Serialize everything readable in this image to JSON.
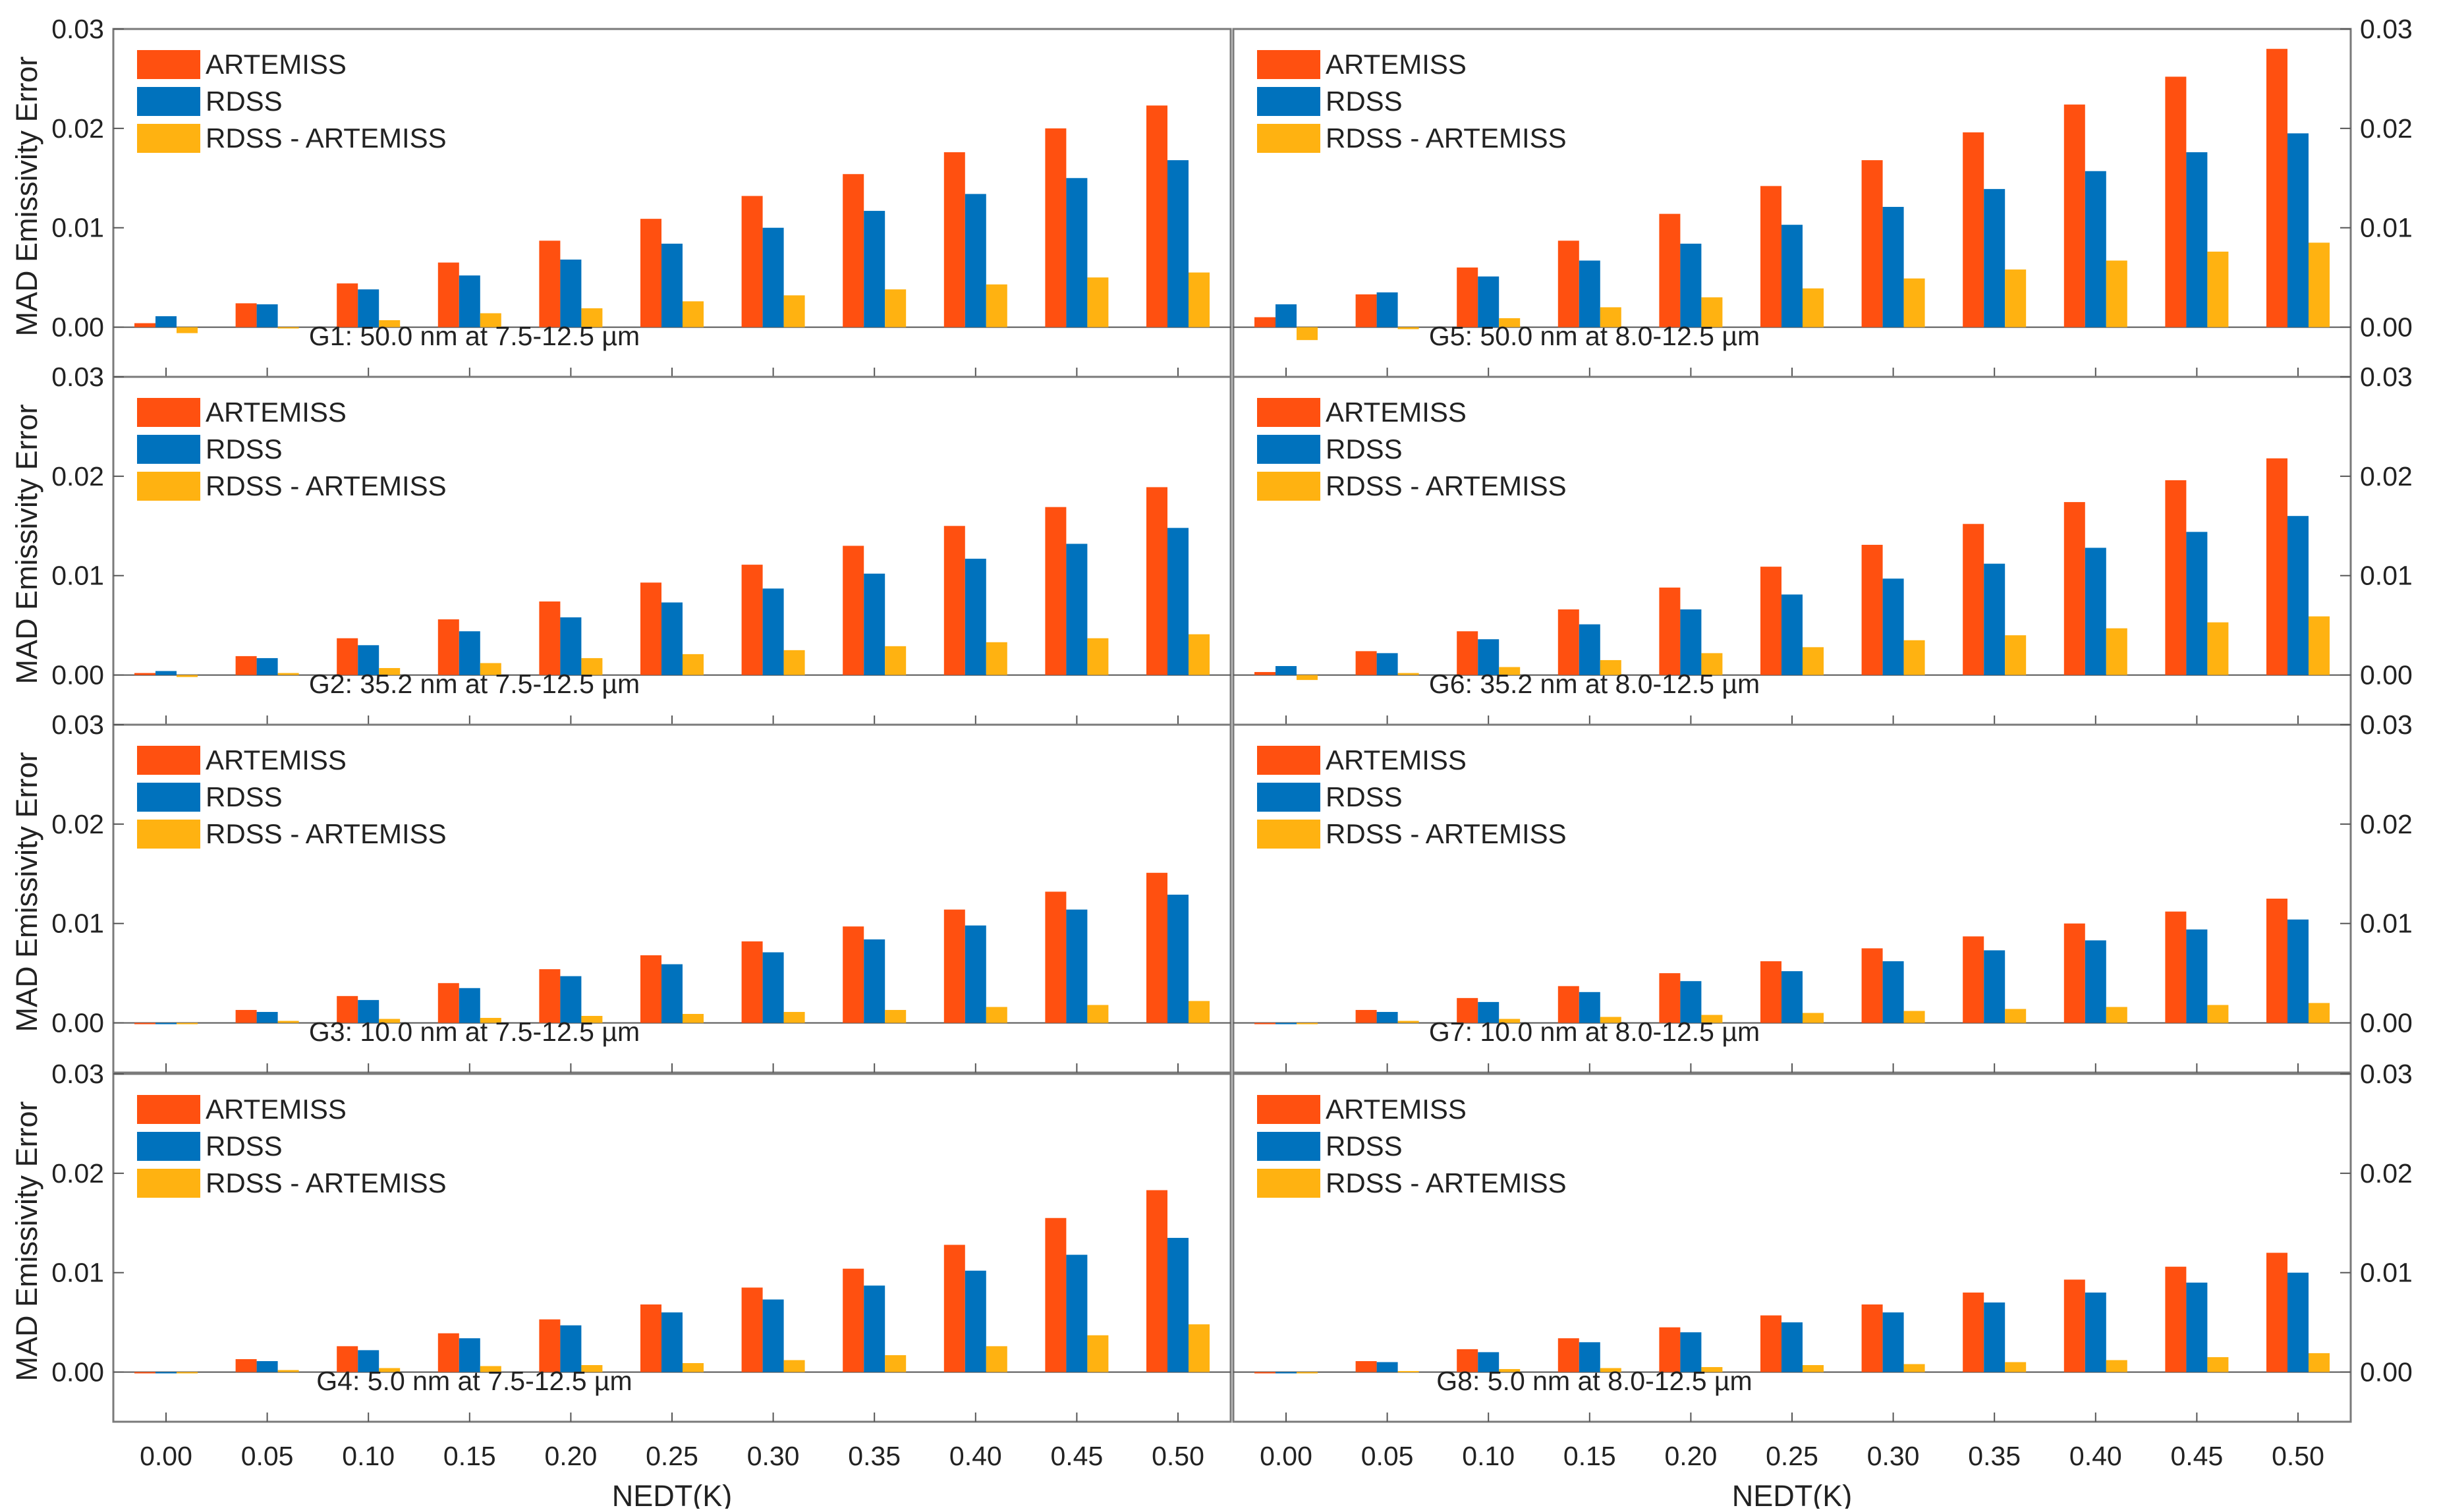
{
  "chart_data": {
    "type": "bar",
    "layout": "4x2 grid of panels sharing y-axis range",
    "ylabel": "MAD Emissivity Error",
    "xlabel": "NEDT(K)",
    "categories": [
      "0.00",
      "0.05",
      "0.10",
      "0.15",
      "0.20",
      "0.25",
      "0.30",
      "0.35",
      "0.40",
      "0.45",
      "0.50"
    ],
    "ylim": [
      -0.005,
      0.03
    ],
    "yticks": [
      "0.00",
      "0.01",
      "0.02",
      "0.03"
    ],
    "legend": [
      "ARTEMISS",
      "RDSS",
      "RDSS - ARTEMISS"
    ],
    "legend_position": "top-left",
    "colors": {
      "ARTEMISS": "#FF5010",
      "RDSS": "#0072BD",
      "RDSS - ARTEMISS": "#FFB211"
    },
    "panels": [
      {
        "title": "G1: 50.0 nm at 7.5-12.5 µm",
        "series": [
          {
            "name": "ARTEMISS",
            "values": [
              0.0004,
              0.0024,
              0.0044,
              0.0065,
              0.0087,
              0.0109,
              0.0132,
              0.0154,
              0.0176,
              0.02,
              0.0223
            ]
          },
          {
            "name": "RDSS",
            "values": [
              0.0011,
              0.0023,
              0.0038,
              0.0052,
              0.0068,
              0.0084,
              0.01,
              0.0117,
              0.0134,
              0.015,
              0.0168
            ]
          },
          {
            "name": "RDSS - ARTEMISS",
            "values": [
              -0.0006,
              0.0,
              0.0007,
              0.0014,
              0.0019,
              0.0026,
              0.0032,
              0.0038,
              0.0043,
              0.005,
              0.0055
            ]
          }
        ]
      },
      {
        "title": "G5: 50.0 nm at 8.0-12.5 µm",
        "series": [
          {
            "name": "ARTEMISS",
            "values": [
              0.001,
              0.0033,
              0.006,
              0.0087,
              0.0114,
              0.0142,
              0.0168,
              0.0196,
              0.0224,
              0.0252,
              0.028
            ]
          },
          {
            "name": "RDSS",
            "values": [
              0.0023,
              0.0035,
              0.0051,
              0.0067,
              0.0084,
              0.0103,
              0.0121,
              0.0139,
              0.0157,
              0.0176,
              0.0195
            ]
          },
          {
            "name": "RDSS - ARTEMISS",
            "values": [
              -0.0013,
              -0.0002,
              0.0009,
              0.002,
              0.003,
              0.0039,
              0.0049,
              0.0058,
              0.0067,
              0.0076,
              0.0085
            ]
          }
        ]
      },
      {
        "title": "G2: 35.2 nm at 7.5-12.5 µm",
        "series": [
          {
            "name": "ARTEMISS",
            "values": [
              0.0002,
              0.0019,
              0.0037,
              0.0056,
              0.0074,
              0.0093,
              0.0111,
              0.013,
              0.015,
              0.0169,
              0.0189
            ]
          },
          {
            "name": "RDSS",
            "values": [
              0.0004,
              0.0017,
              0.003,
              0.0044,
              0.0058,
              0.0073,
              0.0087,
              0.0102,
              0.0117,
              0.0132,
              0.0148
            ]
          },
          {
            "name": "RDSS - ARTEMISS",
            "values": [
              -0.0002,
              0.0002,
              0.0007,
              0.0012,
              0.0017,
              0.0021,
              0.0025,
              0.0029,
              0.0033,
              0.0037,
              0.0041
            ]
          }
        ]
      },
      {
        "title": "G6: 35.2 nm at 8.0-12.5 µm",
        "series": [
          {
            "name": "ARTEMISS",
            "values": [
              0.0003,
              0.0024,
              0.0044,
              0.0066,
              0.0088,
              0.0109,
              0.0131,
              0.0152,
              0.0174,
              0.0196,
              0.0218
            ]
          },
          {
            "name": "RDSS",
            "values": [
              0.0009,
              0.0022,
              0.0036,
              0.0051,
              0.0066,
              0.0081,
              0.0097,
              0.0112,
              0.0128,
              0.0144,
              0.016
            ]
          },
          {
            "name": "RDSS - ARTEMISS",
            "values": [
              -0.0005,
              0.0002,
              0.0008,
              0.0015,
              0.0022,
              0.0028,
              0.0035,
              0.004,
              0.0047,
              0.0053,
              0.0059
            ]
          }
        ]
      },
      {
        "title": "G3: 10.0 nm at 7.5-12.5 µm",
        "series": [
          {
            "name": "ARTEMISS",
            "values": [
              0.0,
              0.0013,
              0.0027,
              0.004,
              0.0054,
              0.0068,
              0.0082,
              0.0097,
              0.0114,
              0.0132,
              0.0151
            ]
          },
          {
            "name": "RDSS",
            "values": [
              0.0,
              0.0011,
              0.0023,
              0.0035,
              0.0047,
              0.0059,
              0.0071,
              0.0084,
              0.0098,
              0.0114,
              0.0129
            ]
          },
          {
            "name": "RDSS - ARTEMISS",
            "values": [
              0.0,
              0.0002,
              0.0004,
              0.0005,
              0.0007,
              0.0009,
              0.0011,
              0.0013,
              0.0016,
              0.0018,
              0.0022
            ]
          }
        ]
      },
      {
        "title": "G7: 10.0 nm at 8.0-12.5 µm",
        "series": [
          {
            "name": "ARTEMISS",
            "values": [
              0.0,
              0.0013,
              0.0025,
              0.0037,
              0.005,
              0.0062,
              0.0075,
              0.0087,
              0.01,
              0.0112,
              0.0125
            ]
          },
          {
            "name": "RDSS",
            "values": [
              0.0,
              0.0011,
              0.0021,
              0.0031,
              0.0042,
              0.0052,
              0.0062,
              0.0073,
              0.0083,
              0.0094,
              0.0104
            ]
          },
          {
            "name": "RDSS - ARTEMISS",
            "values": [
              0.0,
              0.0002,
              0.0004,
              0.0006,
              0.0008,
              0.001,
              0.0012,
              0.0014,
              0.0016,
              0.0018,
              0.002
            ]
          }
        ]
      },
      {
        "title": "G4: 5.0 nm at 7.5-12.5 µm",
        "series": [
          {
            "name": "ARTEMISS",
            "values": [
              0.0,
              0.0013,
              0.0026,
              0.0039,
              0.0053,
              0.0068,
              0.0085,
              0.0104,
              0.0128,
              0.0155,
              0.0183
            ]
          },
          {
            "name": "RDSS",
            "values": [
              0.0,
              0.0011,
              0.0022,
              0.0034,
              0.0047,
              0.006,
              0.0073,
              0.0087,
              0.0102,
              0.0118,
              0.0135
            ]
          },
          {
            "name": "RDSS - ARTEMISS",
            "values": [
              0.0,
              0.0002,
              0.0004,
              0.0006,
              0.0007,
              0.0009,
              0.0012,
              0.0017,
              0.0026,
              0.0037,
              0.0048
            ]
          }
        ]
      },
      {
        "title": "G8: 5.0 nm at 8.0-12.5 µm",
        "series": [
          {
            "name": "ARTEMISS",
            "values": [
              0.0,
              0.0011,
              0.0023,
              0.0034,
              0.0045,
              0.0057,
              0.0068,
              0.008,
              0.0093,
              0.0106,
              0.012
            ]
          },
          {
            "name": "RDSS",
            "values": [
              0.0,
              0.001,
              0.002,
              0.003,
              0.004,
              0.005,
              0.006,
              0.007,
              0.008,
              0.009,
              0.01
            ]
          },
          {
            "name": "RDSS - ARTEMISS",
            "values": [
              0.0,
              0.0001,
              0.0003,
              0.0004,
              0.0005,
              0.0007,
              0.0008,
              0.001,
              0.0012,
              0.0015,
              0.0019
            ]
          }
        ]
      }
    ]
  }
}
